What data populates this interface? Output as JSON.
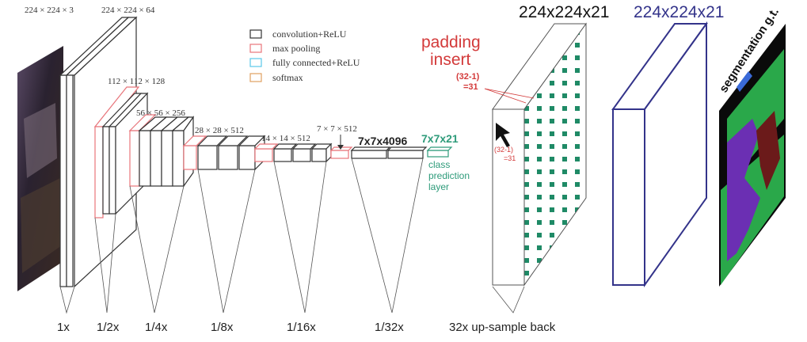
{
  "dims": {
    "input": "224 × 224 × 3",
    "conv1": "224 × 224 × 64",
    "conv2": "112 × 112 × 128",
    "conv3": "56 × 56 × 256",
    "conv4": "28 × 28 × 512",
    "conv5": "14 × 14 × 512",
    "pool5": "7 × 7 × 512",
    "fc": "7x7x4096",
    "class": "7x7x21"
  },
  "legend": [
    {
      "label": "convolution+ReLU",
      "color": "#333333"
    },
    {
      "label": "max pooling",
      "color": "#e8747a"
    },
    {
      "label": "fully connected+ReLU",
      "color": "#5bc8e8"
    },
    {
      "label": "softmax",
      "color": "#e0a060"
    }
  ],
  "class_prediction": [
    "class",
    "prediction",
    "layer"
  ],
  "padding": {
    "title_line1": "padding",
    "title_line2": "insert",
    "formula1": "(32-1)",
    "formula2": "=31",
    "side_formula1": "(32-1)",
    "side_formula2": "=31"
  },
  "upsampled_label": "224x224x21",
  "output_label": "224x224x21",
  "gt_label": "segmentation g.t.",
  "scales": [
    "1x",
    "1/2x",
    "1/4x",
    "1/8x",
    "1/16x",
    "1/32x",
    "32x up-sample back"
  ],
  "colors": {
    "conv": "#333333",
    "pool": "#e8747a",
    "class": "#2e9b7a",
    "red_text": "#d33a3a",
    "navy": "#33338a",
    "gt_green": "#2aa84a",
    "gt_purple": "#6b2fb3",
    "gt_maroon": "#6b1a1a"
  }
}
